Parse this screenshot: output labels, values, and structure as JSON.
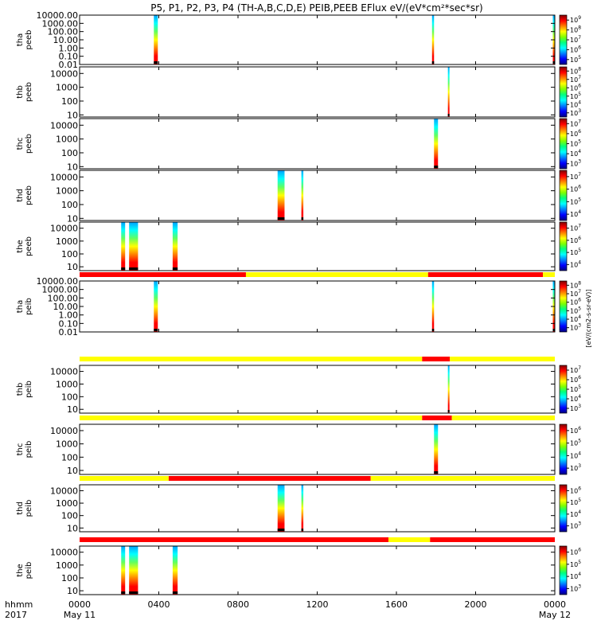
{
  "title": "P5, P1, P2, P3, P4 (TH-A,B,C,D,E) PEIB,PEEB EFlux eV/(eV*cm²*sec*sr)",
  "colorbar_label": "[eV/(cm2-s-sr-eV)]",
  "chart_data": {
    "type": "heatmap",
    "x_unit_label": "hhmm",
    "year_label": "2017",
    "xlim_hours": [
      0,
      24
    ],
    "x_ticks": [
      "0000",
      "0400",
      "0800",
      "1200",
      "1600",
      "2000",
      "0000"
    ],
    "x_tick_hours": [
      0,
      4,
      8,
      12,
      16,
      20,
      24
    ],
    "date_labels": [
      {
        "hour": 0,
        "text": "May 11"
      },
      {
        "hour": 24,
        "text": "May 12"
      }
    ],
    "ylog": true,
    "colormap": [
      "#000080",
      "#0000ff",
      "#0080ff",
      "#00ffff",
      "#00ff80",
      "#80ff00",
      "#ffff00",
      "#ff8000",
      "#ff0000",
      "#800000"
    ],
    "panels": [
      {
        "label": [
          "tha",
          "peeb"
        ],
        "ylim": [
          0.01,
          10000
        ],
        "y_ticks": [
          {
            "v": 10000,
            "t": "10000.00"
          },
          {
            "v": 1000,
            "t": "1000.00"
          },
          {
            "v": 100,
            "t": "100.00"
          },
          {
            "v": 10,
            "t": "10.00"
          },
          {
            "v": 1,
            "t": "1.00"
          },
          {
            "v": 0.1,
            "t": "0.10"
          },
          {
            "v": 0.01,
            "t": "0.01"
          }
        ],
        "cbar_exps": [
          5,
          6,
          7,
          8,
          9
        ],
        "intervals": [
          [
            3.75,
            3.95
          ],
          [
            17.8,
            17.9
          ],
          [
            23.9,
            24
          ]
        ]
      },
      {
        "label": [
          "thb",
          "peeb"
        ],
        "ylim": [
          7,
          30000
        ],
        "y_ticks": [
          {
            "v": 10000,
            "t": "10000"
          },
          {
            "v": 1000,
            "t": "1000"
          },
          {
            "v": 100,
            "t": "100"
          },
          {
            "v": 10,
            "t": "10"
          }
        ],
        "cbar_exps": [
          3,
          4,
          5,
          6,
          7,
          8
        ],
        "intervals": [
          [
            18.6,
            18.65
          ]
        ]
      },
      {
        "label": [
          "thc",
          "peeb"
        ],
        "ylim": [
          7,
          30000
        ],
        "y_ticks": [
          {
            "v": 10000,
            "t": "10000"
          },
          {
            "v": 1000,
            "t": "1000"
          },
          {
            "v": 100,
            "t": "100"
          },
          {
            "v": 10,
            "t": "10"
          }
        ],
        "cbar_exps": [
          3,
          4,
          5,
          6,
          7
        ],
        "intervals": [
          [
            17.9,
            18.1
          ]
        ]
      },
      {
        "label": [
          "thd",
          "peeb"
        ],
        "ylim": [
          7,
          30000
        ],
        "y_ticks": [
          {
            "v": 10000,
            "t": "10000"
          },
          {
            "v": 1000,
            "t": "1000"
          },
          {
            "v": 100,
            "t": "100"
          },
          {
            "v": 10,
            "t": "10"
          }
        ],
        "cbar_exps": [
          4,
          5,
          6,
          7
        ],
        "intervals": [
          [
            10.0,
            10.35
          ],
          [
            11.2,
            11.3
          ]
        ]
      },
      {
        "label": [
          "the",
          "peeb"
        ],
        "ylim": [
          5,
          30000
        ],
        "y_ticks": [
          {
            "v": 10000,
            "t": "10000"
          },
          {
            "v": 1000,
            "t": "1000"
          },
          {
            "v": 100,
            "t": "100"
          },
          {
            "v": 10,
            "t": "10"
          }
        ],
        "cbar_exps": [
          4,
          5,
          6,
          7
        ],
        "intervals": [
          [
            2.1,
            2.3
          ],
          [
            2.5,
            2.95
          ],
          [
            4.7,
            4.95
          ]
        ]
      },
      {
        "label": [
          "tha",
          "peib"
        ],
        "ylim": [
          0.01,
          10000
        ],
        "y_ticks": [
          {
            "v": 10000,
            "t": "10000.00"
          },
          {
            "v": 1000,
            "t": "1000.00"
          },
          {
            "v": 100,
            "t": "100.00"
          },
          {
            "v": 10,
            "t": "10.00"
          },
          {
            "v": 1,
            "t": "1.00"
          },
          {
            "v": 0.1,
            "t": "0.10"
          },
          {
            "v": 0.01,
            "t": "0.01"
          }
        ],
        "cbar_exps": [
          3,
          4,
          5,
          6,
          7,
          8
        ],
        "intervals": [
          [
            3.75,
            3.95
          ],
          [
            17.8,
            17.9
          ],
          [
            23.9,
            24
          ]
        ],
        "mode_bar": [
          {
            "from": 0,
            "to": 8.4,
            "color": "#ff0000"
          },
          {
            "from": 8.4,
            "to": 17.6,
            "color": "#ffff00"
          },
          {
            "from": 17.6,
            "to": 23.4,
            "color": "#ff0000"
          },
          {
            "from": 23.4,
            "to": 24,
            "color": "#ffff00"
          }
        ]
      },
      {
        "label": [
          "thb",
          "peib"
        ],
        "ylim": [
          5,
          30000
        ],
        "y_ticks": [
          {
            "v": 10000,
            "t": "10000"
          },
          {
            "v": 1000,
            "t": "1000"
          },
          {
            "v": 100,
            "t": "100"
          },
          {
            "v": 10,
            "t": "10"
          }
        ],
        "cbar_exps": [
          3,
          4,
          5,
          6,
          7
        ],
        "intervals": [
          [
            18.6,
            18.65
          ]
        ],
        "mode_bar": [
          {
            "from": 0,
            "to": 17.3,
            "color": "#ffff00"
          },
          {
            "from": 17.3,
            "to": 18.7,
            "color": "#ff0000"
          },
          {
            "from": 18.7,
            "to": 24,
            "color": "#ffff00"
          }
        ]
      },
      {
        "label": [
          "thc",
          "peib"
        ],
        "ylim": [
          5,
          30000
        ],
        "y_ticks": [
          {
            "v": 10000,
            "t": "10000"
          },
          {
            "v": 1000,
            "t": "1000"
          },
          {
            "v": 100,
            "t": "100"
          },
          {
            "v": 10,
            "t": "10"
          }
        ],
        "cbar_exps": [
          3,
          4,
          5,
          6
        ],
        "intervals": [
          [
            17.9,
            18.1
          ]
        ],
        "mode_bar": [
          {
            "from": 0,
            "to": 17.3,
            "color": "#ffff00"
          },
          {
            "from": 17.3,
            "to": 18.8,
            "color": "#ff0000"
          },
          {
            "from": 18.8,
            "to": 24,
            "color": "#ffff00"
          }
        ]
      },
      {
        "label": [
          "thd",
          "peib"
        ],
        "ylim": [
          5,
          30000
        ],
        "y_ticks": [
          {
            "v": 10000,
            "t": "10000"
          },
          {
            "v": 1000,
            "t": "1000"
          },
          {
            "v": 100,
            "t": "100"
          },
          {
            "v": 10,
            "t": "10"
          }
        ],
        "cbar_exps": [
          3,
          4,
          5,
          6
        ],
        "intervals": [
          [
            10.0,
            10.35
          ],
          [
            11.2,
            11.3
          ]
        ],
        "mode_bar": [
          {
            "from": 0,
            "to": 4.5,
            "color": "#ffff00"
          },
          {
            "from": 4.5,
            "to": 14.7,
            "color": "#ff0000"
          },
          {
            "from": 14.7,
            "to": 24,
            "color": "#ffff00"
          }
        ]
      },
      {
        "label": [
          "the",
          "peib"
        ],
        "ylim": [
          5,
          30000
        ],
        "y_ticks": [
          {
            "v": 10000,
            "t": "10000"
          },
          {
            "v": 1000,
            "t": "1000"
          },
          {
            "v": 100,
            "t": "100"
          },
          {
            "v": 10,
            "t": "10"
          }
        ],
        "cbar_exps": [
          3,
          4,
          5,
          6
        ],
        "intervals": [
          [
            2.1,
            2.3
          ],
          [
            2.5,
            2.95
          ],
          [
            4.7,
            4.95
          ]
        ],
        "mode_bar": [
          {
            "from": 0,
            "to": 15.6,
            "color": "#ff0000"
          },
          {
            "from": 15.6,
            "to": 17.7,
            "color": "#ffff00"
          },
          {
            "from": 17.7,
            "to": 24,
            "color": "#ff0000"
          }
        ]
      }
    ]
  }
}
